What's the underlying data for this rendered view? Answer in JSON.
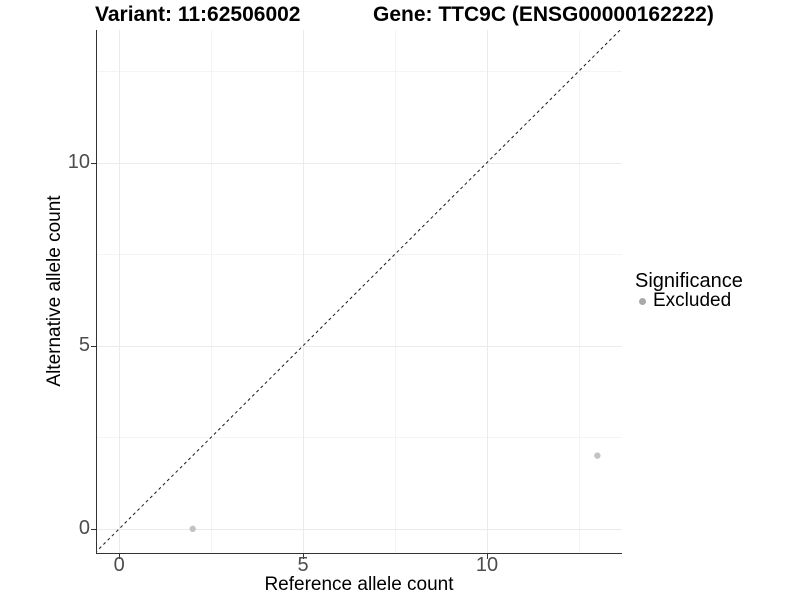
{
  "title": {
    "variant_label": "Variant: 11:62506002",
    "gene_label": "Gene: TTC9C (ENSG00000162222)"
  },
  "legend": {
    "title": "Significance",
    "items": [
      {
        "label": "Excluded",
        "key_color": "#a9a9a9"
      }
    ]
  },
  "colors": {
    "background": "#ffffff",
    "axis_line": "#333333",
    "tick_mark": "#333333",
    "tick_text": "#4d4d4d",
    "grid_major": "#ebebeb",
    "grid_minor": "#f4f4f4",
    "reference_line": "#1a1a1a",
    "point": "#c3c3c3"
  },
  "chart_data": {
    "type": "scatter",
    "title": "Variant: 11:62506002   Gene: TTC9C (ENSG00000162222)",
    "xlabel": "Reference allele count",
    "ylabel": "Alternative allele count",
    "xlim": [
      -0.63,
      13.67
    ],
    "ylim": [
      -0.66,
      13.62
    ],
    "x_ticks": [
      0,
      5,
      10
    ],
    "x_tick_labels": [
      "0",
      "5",
      "10"
    ],
    "y_ticks": [
      0,
      5,
      10
    ],
    "y_tick_labels": [
      "0",
      "5",
      "10"
    ],
    "x_minor_ticks": [
      2.5,
      7.5,
      12.5
    ],
    "y_minor_ticks": [
      2.5,
      7.5,
      12.5
    ],
    "grid": true,
    "legend_position": "right",
    "legend_title": "Significance",
    "series": [
      {
        "name": "Excluded",
        "color": "#c3c3c3",
        "marker": "circle",
        "points": [
          {
            "x": 2,
            "y": 0
          },
          {
            "x": 13,
            "y": 2
          }
        ]
      }
    ],
    "reference_line": {
      "kind": "identity",
      "equation": "y = x",
      "style": "dashed",
      "color": "#1a1a1a"
    }
  }
}
